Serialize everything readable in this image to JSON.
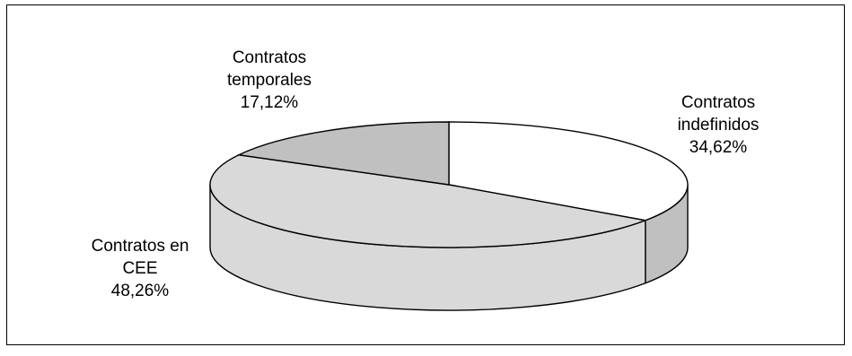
{
  "chart_data": {
    "type": "pie",
    "categories": [
      "Contratos indefinidos",
      "Contratos en CEE",
      "Contratos temporales"
    ],
    "values": [
      34.62,
      48.26,
      17.12
    ],
    "slices": [
      {
        "name": "Contratos indefinidos",
        "value": 34.62,
        "color": "#ffffff",
        "label_lines": [
          "Contratos",
          "indefinidos",
          "34,62%"
        ]
      },
      {
        "name": "Contratos en CEE",
        "value": 48.26,
        "color": "#d9d9d9",
        "label_lines": [
          "Contratos en",
          "CEE",
          "48,26%"
        ]
      },
      {
        "name": "Contratos temporales",
        "value": 17.12,
        "color": "#c0c0c0",
        "label_lines": [
          "Contratos",
          "temporales",
          "17,12%"
        ]
      }
    ],
    "style": "3d",
    "legend": "none"
  }
}
